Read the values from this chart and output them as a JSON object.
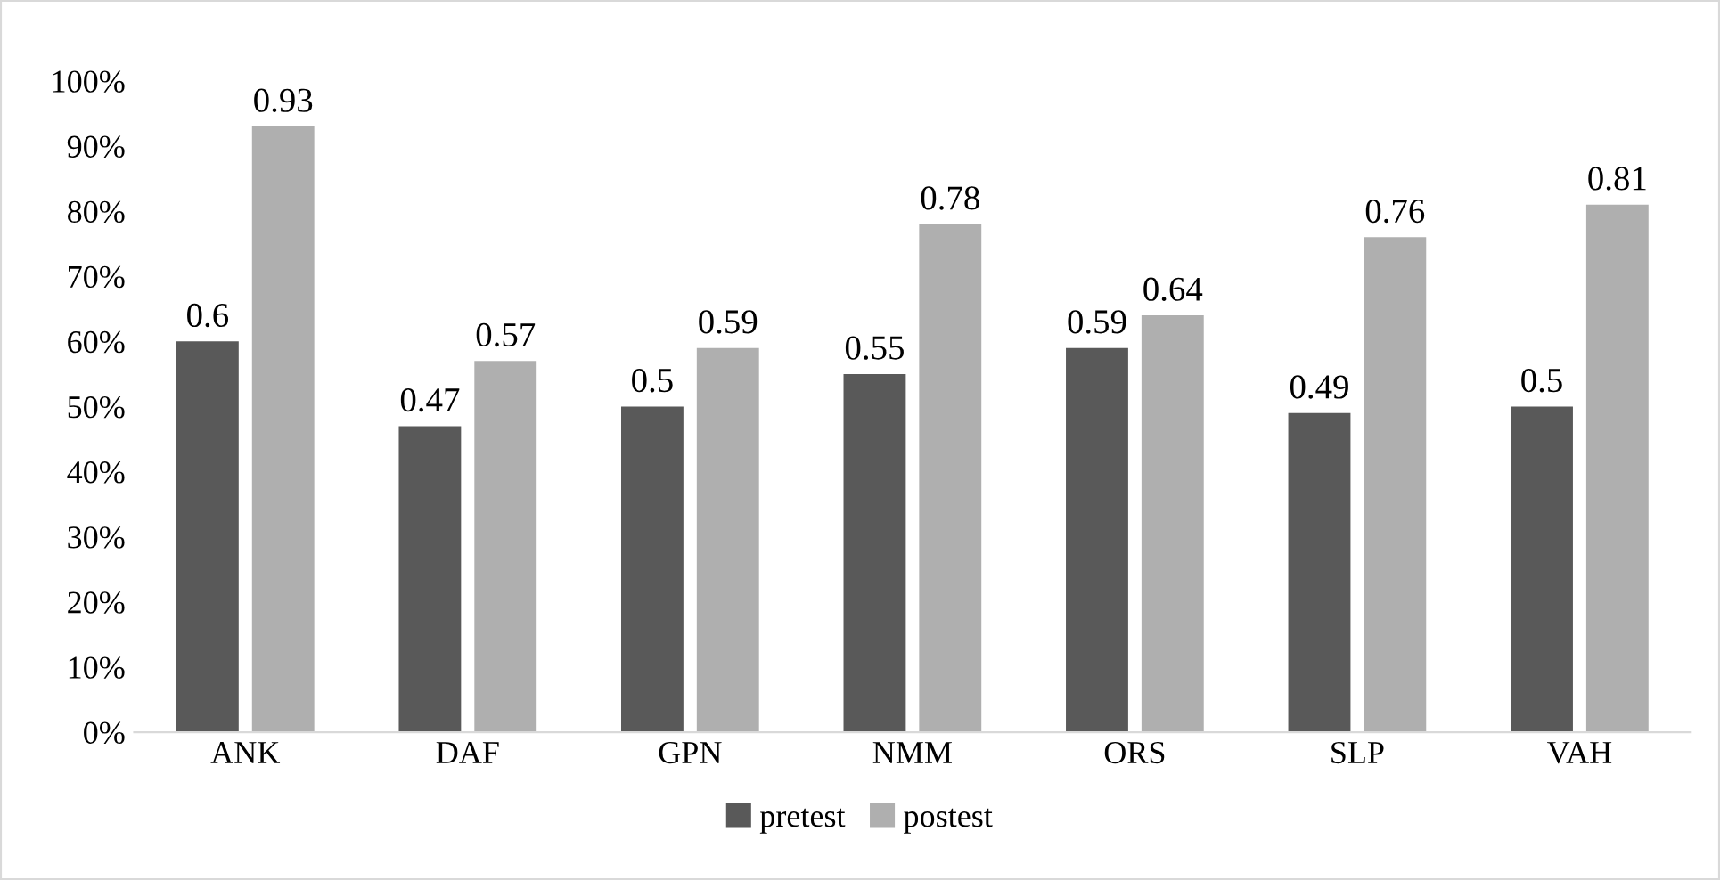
{
  "chart_data": {
    "type": "bar",
    "categories": [
      "ANK",
      "DAF",
      "GPN",
      "NMM",
      "ORS",
      "SLP",
      "VAH"
    ],
    "series": [
      {
        "name": "pretest",
        "color": "#595959",
        "values": [
          0.6,
          0.47,
          0.5,
          0.55,
          0.59,
          0.49,
          0.5
        ]
      },
      {
        "name": "postest",
        "color": "#afafaf",
        "values": [
          0.93,
          0.57,
          0.59,
          0.78,
          0.64,
          0.76,
          0.81
        ]
      }
    ],
    "ylim": [
      0,
      1
    ],
    "yticks": [
      {
        "value": 0,
        "label": "0%"
      },
      {
        "value": 0.1,
        "label": "10%"
      },
      {
        "value": 0.2,
        "label": "20%"
      },
      {
        "value": 0.3,
        "label": "30%"
      },
      {
        "value": 0.4,
        "label": "40%"
      },
      {
        "value": 0.5,
        "label": "50%"
      },
      {
        "value": 0.6,
        "label": "60%"
      },
      {
        "value": 0.7,
        "label": "70%"
      },
      {
        "value": 0.8,
        "label": "80%"
      },
      {
        "value": 0.9,
        "label": "90%"
      },
      {
        "value": 1,
        "label": "100%"
      }
    ],
    "grid": false,
    "legend": "bottom",
    "data_labels": true
  }
}
